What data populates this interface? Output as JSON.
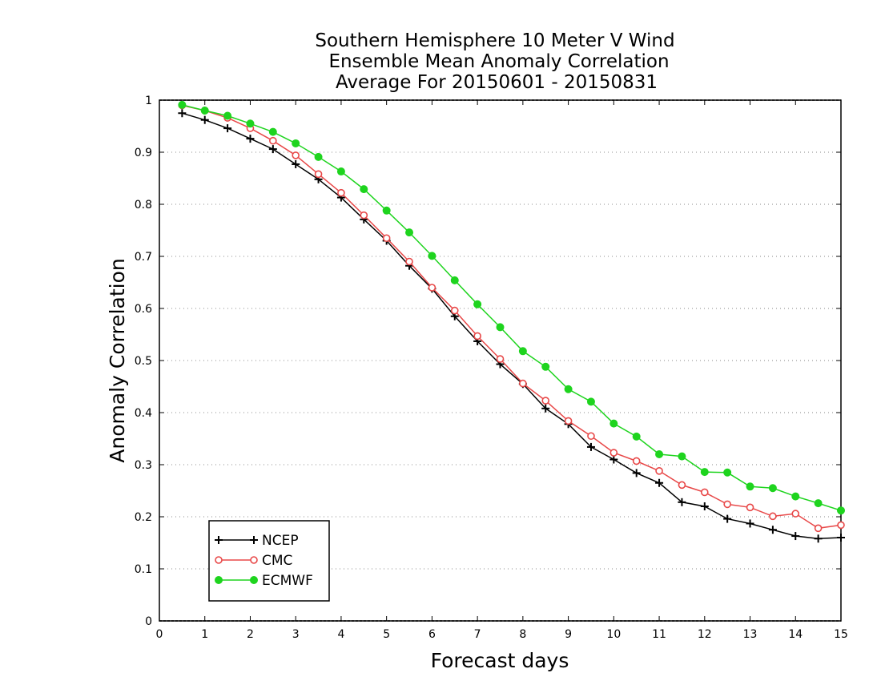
{
  "chart_data": {
    "type": "line",
    "title": [
      "Southern Hemisphere 10 Meter V Wind",
      "Ensemble Mean Anomaly Correlation",
      "Average For 20150601 - 20150831"
    ],
    "xlabel": "Forecast days",
    "ylabel": "Anomaly Correlation",
    "xlim": [
      0,
      15
    ],
    "ylim": [
      0,
      1
    ],
    "xticks": [
      0,
      1,
      2,
      3,
      4,
      5,
      6,
      7,
      8,
      9,
      10,
      11,
      12,
      13,
      14,
      15
    ],
    "xtick_labels": [
      "0",
      "1",
      "2",
      "3",
      "4",
      "5",
      "6",
      "7",
      "8",
      "9",
      "10",
      "11",
      "12",
      "13",
      "14",
      "15"
    ],
    "yticks": [
      0,
      0.1,
      0.2,
      0.3,
      0.4,
      0.5,
      0.6,
      0.7,
      0.8,
      0.9,
      1
    ],
    "ytick_labels": [
      "0",
      "0.1",
      "0.2",
      "0.3",
      "0.4",
      "0.5",
      "0.6",
      "0.7",
      "0.8",
      "0.9",
      "1"
    ],
    "grid": "horizontal dotted",
    "legend_position": "bottom-left",
    "x": [
      0.5,
      1,
      1.5,
      2,
      2.5,
      3,
      3.5,
      4,
      4.5,
      5,
      5.5,
      6,
      6.5,
      7,
      7.5,
      8,
      8.5,
      9,
      9.5,
      10,
      10.5,
      11,
      11.5,
      12,
      12.5,
      13,
      13.5,
      14,
      14.5,
      15
    ],
    "series": [
      {
        "name": "NCEP",
        "color": "#000000",
        "marker": "plus",
        "values": [
          0.975,
          0.962,
          0.946,
          0.926,
          0.906,
          0.877,
          0.848,
          0.813,
          0.771,
          0.73,
          0.682,
          0.638,
          0.585,
          0.537,
          0.493,
          0.455,
          0.408,
          0.378,
          0.334,
          0.31,
          0.284,
          0.265,
          0.228,
          0.22,
          0.196,
          0.187,
          0.175,
          0.163,
          0.158,
          0.16
        ]
      },
      {
        "name": "CMC",
        "color": "#e84848",
        "marker": "open-circle",
        "values": [
          0.99,
          0.98,
          0.966,
          0.946,
          0.922,
          0.894,
          0.858,
          0.822,
          0.779,
          0.735,
          0.69,
          0.64,
          0.596,
          0.547,
          0.503,
          0.456,
          0.423,
          0.384,
          0.355,
          0.323,
          0.307,
          0.288,
          0.261,
          0.247,
          0.224,
          0.218,
          0.201,
          0.206,
          0.178,
          0.184
        ]
      },
      {
        "name": "ECMWF",
        "color": "#1ed41e",
        "marker": "filled-circle",
        "values": [
          0.991,
          0.98,
          0.97,
          0.955,
          0.939,
          0.917,
          0.891,
          0.863,
          0.829,
          0.788,
          0.746,
          0.701,
          0.654,
          0.608,
          0.564,
          0.518,
          0.488,
          0.445,
          0.421,
          0.379,
          0.354,
          0.32,
          0.316,
          0.286,
          0.285,
          0.258,
          0.255,
          0.239,
          0.226,
          0.212
        ]
      }
    ]
  }
}
